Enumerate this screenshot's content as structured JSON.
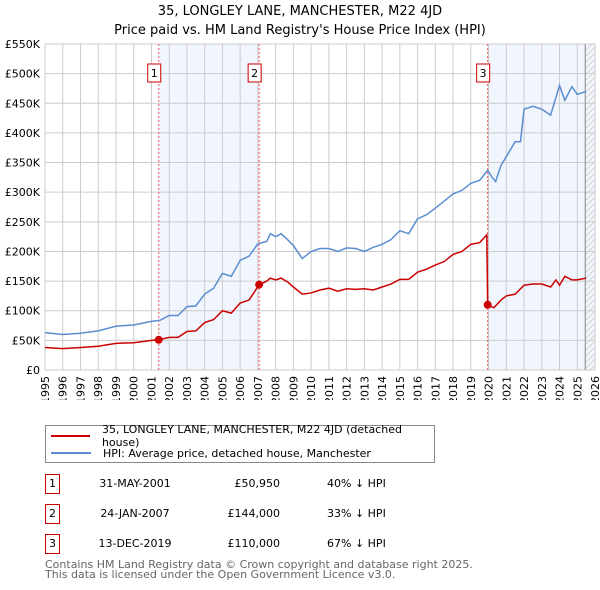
{
  "chart_data": {
    "type": "line",
    "title": "35, LONGLEY LANE, MANCHESTER, M22 4JD",
    "subtitle": "Price paid vs. HM Land Registry's House Price Index (HPI)",
    "xlim": [
      1995,
      2026
    ],
    "ylim": [
      0,
      550000
    ],
    "x_ticks": [
      "1995",
      "1996",
      "1997",
      "1998",
      "1999",
      "2000",
      "2001",
      "2002",
      "2003",
      "2004",
      "2005",
      "2006",
      "2007",
      "2008",
      "2009",
      "2010",
      "2011",
      "2012",
      "2013",
      "2014",
      "2015",
      "2016",
      "2017",
      "2018",
      "2019",
      "2020",
      "2021",
      "2022",
      "2023",
      "2024",
      "2025",
      "2026"
    ],
    "y_ticks": [
      "£0",
      "£50K",
      "£100K",
      "£150K",
      "£200K",
      "£250K",
      "£300K",
      "£350K",
      "£400K",
      "£450K",
      "£500K",
      "£550K"
    ],
    "grid": true,
    "series": [
      {
        "name": "35, LONGLEY LANE, MANCHESTER, M22 4JD (detached house)",
        "color": "#cc0000",
        "x": [
          1995,
          1996,
          1997,
          1998,
          1999,
          2000,
          2001,
          2001.41,
          2002,
          2002.5,
          2003,
          2003.5,
          2004,
          2004.5,
          2005,
          2005.5,
          2006,
          2006.5,
          2007.07,
          2007.5,
          2007.7,
          2008,
          2008.3,
          2008.7,
          2009,
          2009.5,
          2010,
          2010.5,
          2011,
          2011.5,
          2012,
          2012.5,
          2013,
          2013.5,
          2014,
          2014.5,
          2015,
          2015.5,
          2016,
          2016.5,
          2017,
          2017.5,
          2018,
          2018.5,
          2019,
          2019.5,
          2019.9,
          2019.95,
          2020.3,
          2020.7,
          2021,
          2021.5,
          2022,
          2022.5,
          2023,
          2023.5,
          2023.8,
          2024,
          2024.3,
          2024.7,
          2025,
          2025.5
        ],
        "y": [
          38000,
          36000,
          38000,
          40000,
          45000,
          46000,
          50000,
          50950,
          55000,
          55000,
          65000,
          66000,
          80000,
          85000,
          100000,
          96000,
          113000,
          118000,
          144000,
          150000,
          155000,
          152000,
          155000,
          148000,
          140000,
          128000,
          130000,
          135000,
          138000,
          133000,
          137000,
          136000,
          137000,
          135000,
          140000,
          145000,
          153000,
          153000,
          165000,
          170000,
          177000,
          183000,
          195000,
          200000,
          212000,
          215000,
          228000,
          110000,
          105000,
          118000,
          125000,
          128000,
          143000,
          145000,
          145000,
          140000,
          152000,
          143000,
          158000,
          152000,
          152000,
          155000
        ]
      },
      {
        "name": "HPI: Average price, detached house, Manchester",
        "color": "#5b8dd0",
        "x": [
          1995,
          1996,
          1997,
          1998,
          1999,
          2000,
          2001,
          2001.5,
          2002,
          2002.5,
          2003,
          2003.5,
          2004,
          2004.5,
          2005,
          2005.5,
          2006,
          2006.5,
          2007,
          2007.5,
          2007.7,
          2008,
          2008.3,
          2008.6,
          2009,
          2009.5,
          2010,
          2010.5,
          2011,
          2011.5,
          2012,
          2012.5,
          2013,
          2013.5,
          2014,
          2014.5,
          2015,
          2015.5,
          2016,
          2016.5,
          2017,
          2017.5,
          2018,
          2018.5,
          2019,
          2019.5,
          2019.95,
          2020.2,
          2020.4,
          2020.7,
          2021,
          2021.5,
          2021.8,
          2022,
          2022.5,
          2023,
          2023.5,
          2023.8,
          2024,
          2024.3,
          2024.7,
          2025,
          2025.5
        ],
        "y": [
          63000,
          60000,
          62000,
          66000,
          74000,
          76000,
          82000,
          84000,
          92000,
          92000,
          107000,
          108000,
          128000,
          138000,
          163000,
          158000,
          185000,
          192000,
          213000,
          217000,
          230000,
          225000,
          230000,
          222000,
          210000,
          188000,
          200000,
          205000,
          205000,
          200000,
          206000,
          205000,
          200000,
          207000,
          212000,
          220000,
          235000,
          230000,
          255000,
          262000,
          273000,
          285000,
          297000,
          303000,
          315000,
          320000,
          337000,
          325000,
          318000,
          345000,
          360000,
          385000,
          385000,
          440000,
          445000,
          440000,
          430000,
          460000,
          480000,
          455000,
          478000,
          465000,
          470000
        ]
      }
    ],
    "sales": [
      {
        "label": "1",
        "x": 2001.41,
        "y": 50950
      },
      {
        "label": "2",
        "x": 2007.07,
        "y": 144000
      },
      {
        "label": "3",
        "x": 2019.95,
        "y": 110000
      }
    ],
    "shaded_ranges": [
      [
        2001.41,
        2007.07
      ],
      [
        2019.95,
        2026
      ]
    ],
    "forecast_from": 2025.45,
    "legend": "below"
  },
  "table": [
    {
      "num": "1",
      "date": "31-MAY-2001",
      "price": "£50,950",
      "hpi": "40% ↓ HPI"
    },
    {
      "num": "2",
      "date": "24-JAN-2007",
      "price": "£144,000",
      "hpi": "33% ↓ HPI"
    },
    {
      "num": "3",
      "date": "13-DEC-2019",
      "price": "£110,000",
      "hpi": "67% ↓ HPI"
    }
  ],
  "footer": {
    "line1": "Contains HM Land Registry data © Crown copyright and database right 2025.",
    "line2": "This data is licensed under the Open Government Licence v3.0."
  }
}
